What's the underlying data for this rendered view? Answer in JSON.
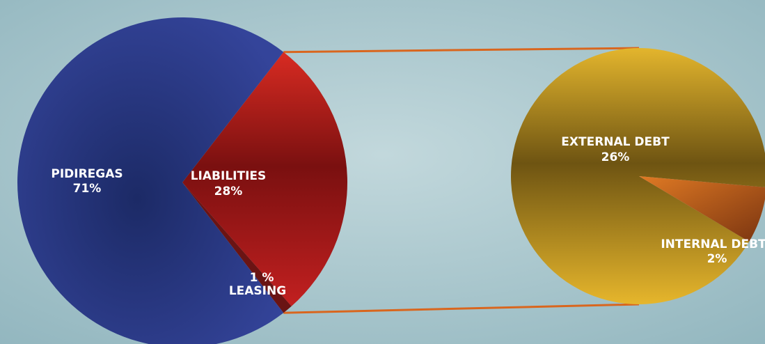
{
  "chart_data": [
    {
      "type": "pie",
      "slices": [
        {
          "label": "PIDIREGAS",
          "value": 71,
          "text": "71%",
          "color": "#2e3a8c"
        },
        {
          "label": "LIABILITIES",
          "value": 28,
          "text": "28%",
          "color": "#b51e1e"
        },
        {
          "label": "LEASING",
          "value": 1,
          "text": "1 %",
          "color": "#6a1414"
        }
      ]
    },
    {
      "type": "pie",
      "slices": [
        {
          "label": "EXTERNAL DEBT",
          "value": 26,
          "text": "26%",
          "color": "#d9ad2a"
        },
        {
          "label": "INTERNAL DEBT",
          "value": 2,
          "text": "2%",
          "color": "#b0561a"
        }
      ]
    }
  ],
  "colors": {
    "background": "#a9c6cc",
    "connector": "#d9661e"
  }
}
